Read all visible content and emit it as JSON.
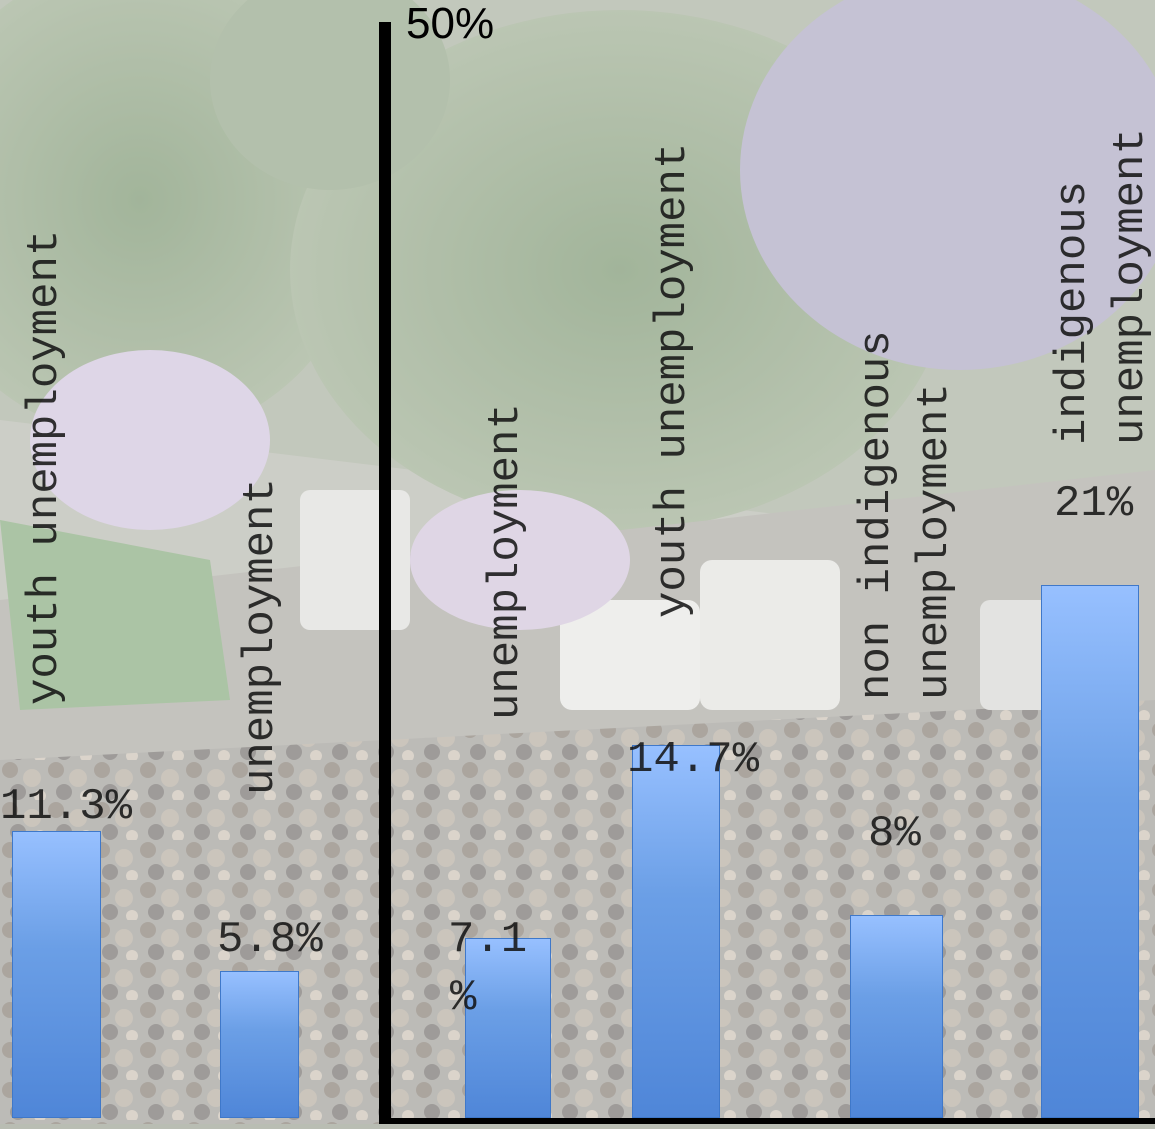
{
  "chart_data": {
    "type": "bar",
    "axis_max_label": "50%",
    "ylim": [
      0,
      50
    ],
    "grid": false,
    "legend": "none",
    "bar_color": "#6b9fe6",
    "categories": [
      [
        "youth unemployment"
      ],
      [
        "unemployment"
      ],
      [
        "unemployment"
      ],
      [
        "youth unemployment"
      ],
      [
        "non indigenous",
        "unemployment"
      ],
      [
        "indigenous",
        "unemployment"
      ]
    ],
    "values": [
      11.3,
      5.8,
      7.1,
      14.7,
      8,
      21
    ],
    "value_labels": [
      "11.3%",
      "5.8%",
      "7.1",
      "14.7%",
      "8%",
      "21%"
    ],
    "value_label_extra": [
      "",
      "",
      "%",
      "",
      "",
      ""
    ]
  }
}
